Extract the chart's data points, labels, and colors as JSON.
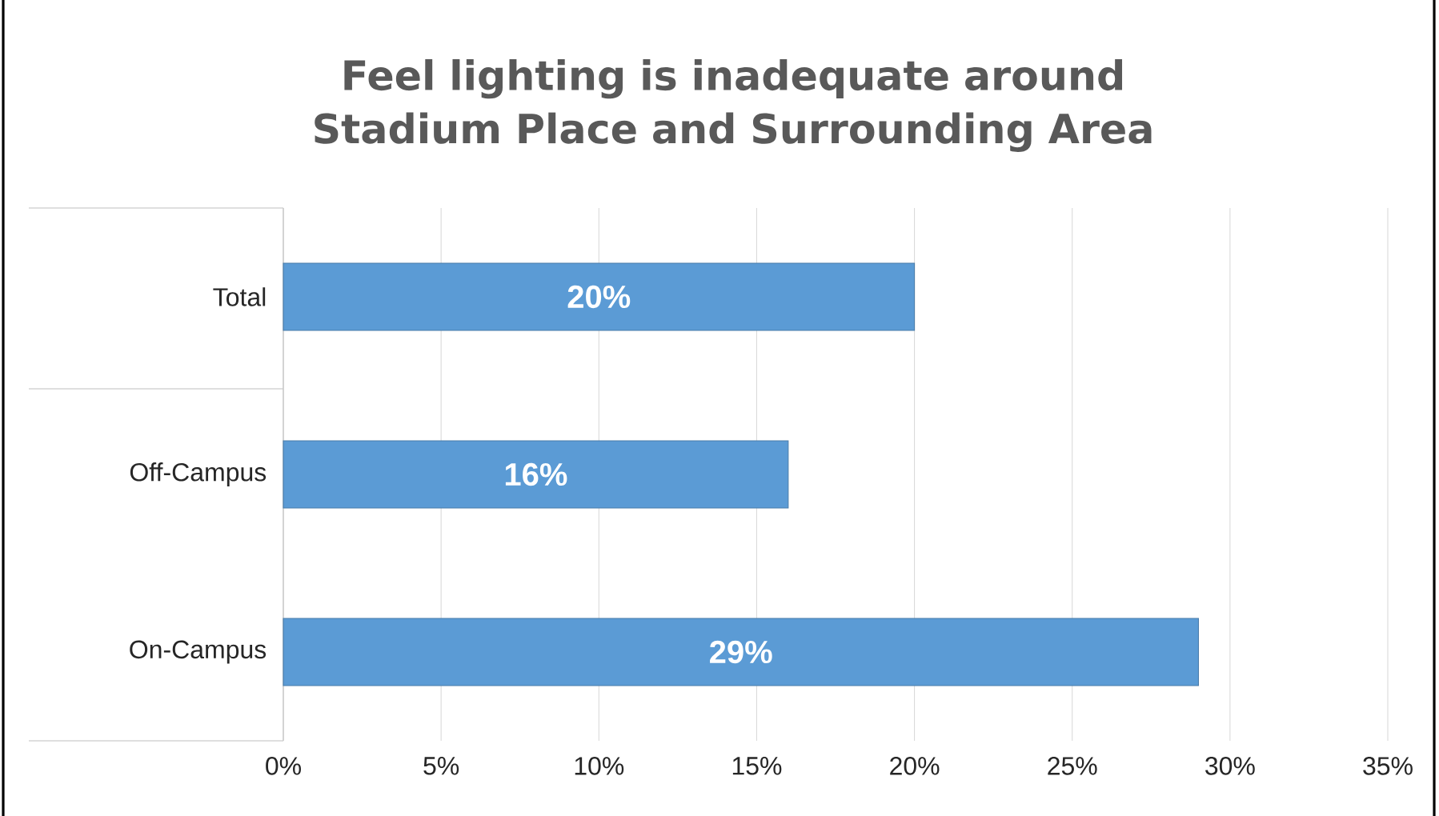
{
  "chart_data": {
    "type": "bar",
    "orientation": "horizontal",
    "title": "Feel lighting is inadequate around Stadium Place and Surrounding Area",
    "categories": [
      "Total",
      "Off-Campus",
      "On-Campus"
    ],
    "values": [
      20,
      16,
      29
    ],
    "value_labels": [
      "20%",
      "16%",
      "29%"
    ],
    "color": "#5b9bd5",
    "xlim": [
      0,
      35
    ],
    "xticks": [
      {
        "value": 0,
        "label": "0%"
      },
      {
        "value": 5,
        "label": "5%"
      },
      {
        "value": 10,
        "label": "10%"
      },
      {
        "value": 15,
        "label": "15%"
      },
      {
        "value": 20,
        "label": "20%"
      },
      {
        "value": 25,
        "label": "25%"
      },
      {
        "value": 30,
        "label": "30%"
      },
      {
        "value": 35,
        "label": "35%"
      }
    ],
    "grid": "x"
  }
}
